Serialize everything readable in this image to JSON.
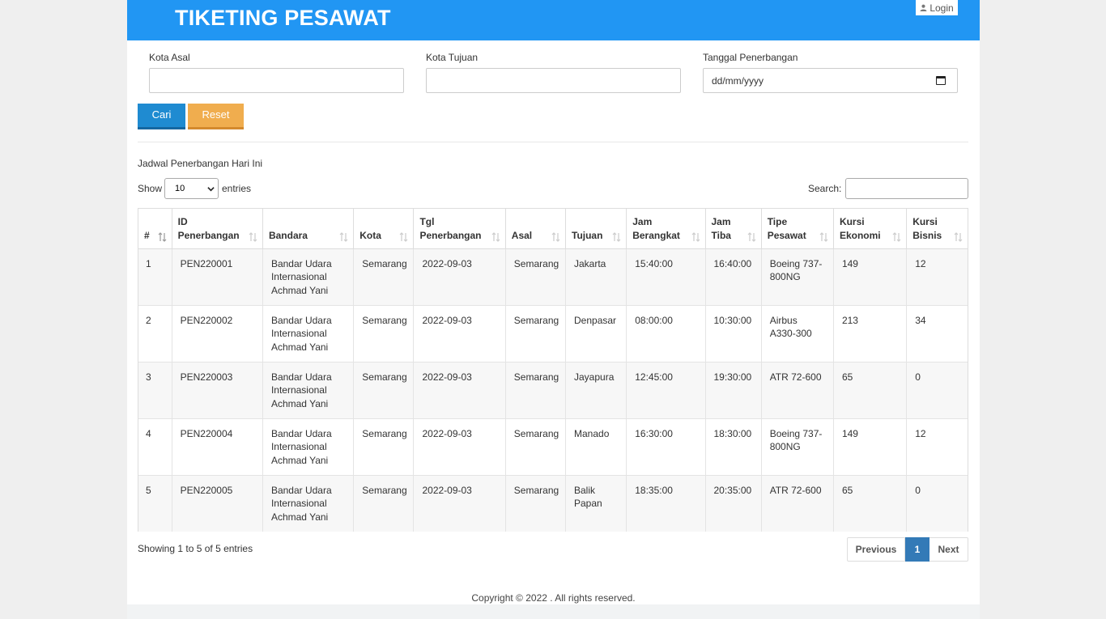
{
  "header": {
    "brand": "TIKETING PESAWAT",
    "login_label": "Login",
    "color": "#2196f3"
  },
  "form": {
    "kota_asal_label": "Kota Asal",
    "kota_asal_value": "",
    "kota_tujuan_label": "Kota Tujuan",
    "kota_tujuan_value": "",
    "tanggal_label": "Tanggal Penerbangan",
    "tanggal_placeholder": "dd/mm/yyyy",
    "cari_label": "Cari",
    "reset_label": "Reset"
  },
  "section": {
    "title": "Jadwal Penerbangan Hari Ini"
  },
  "table_controls": {
    "show_label": "Show",
    "entries_value": "10",
    "entries_label": "entries",
    "search_label": "Search:",
    "search_value": ""
  },
  "table": {
    "headers": [
      [
        "#"
      ],
      [
        "ID",
        "Penerbangan"
      ],
      [
        "Bandara"
      ],
      [
        "Kota"
      ],
      [
        "Tgl",
        "Penerbangan"
      ],
      [
        "Asal"
      ],
      [
        "Tujuan"
      ],
      [
        "Jam",
        "Berangkat"
      ],
      [
        "Jam",
        "Tiba"
      ],
      [
        "Tipe",
        "Pesawat"
      ],
      [
        "Kursi",
        "Ekonomi"
      ],
      [
        "Kursi",
        "Bisnis"
      ]
    ],
    "rows": [
      [
        "1",
        "PEN220001",
        "Bandar Udara Internasional Achmad Yani",
        "Semarang",
        "2022-09-03",
        "Semarang",
        "Jakarta",
        "15:40:00",
        "16:40:00",
        "Boeing 737-800NG",
        "149",
        "12"
      ],
      [
        "2",
        "PEN220002",
        "Bandar Udara Internasional Achmad Yani",
        "Semarang",
        "2022-09-03",
        "Semarang",
        "Denpasar",
        "08:00:00",
        "10:30:00",
        "Airbus A330-300",
        "213",
        "34"
      ],
      [
        "3",
        "PEN220003",
        "Bandar Udara Internasional Achmad Yani",
        "Semarang",
        "2022-09-03",
        "Semarang",
        "Jayapura",
        "12:45:00",
        "19:30:00",
        "ATR 72-600",
        "65",
        "0"
      ],
      [
        "4",
        "PEN220004",
        "Bandar Udara Internasional Achmad Yani",
        "Semarang",
        "2022-09-03",
        "Semarang",
        "Manado",
        "16:30:00",
        "18:30:00",
        "Boeing 737-800NG",
        "149",
        "12"
      ],
      [
        "5",
        "PEN220005",
        "Bandar Udara Internasional Achmad Yani",
        "Semarang",
        "2022-09-03",
        "Semarang",
        "Balik Papan",
        "18:35:00",
        "20:35:00",
        "ATR 72-600",
        "65",
        "0"
      ]
    ]
  },
  "pagination": {
    "info": "Showing 1 to 5 of 5 entries",
    "previous": "Previous",
    "current": "1",
    "next": "Next"
  },
  "footer": {
    "copyright": "Copyright © 2022 . All rights reserved."
  }
}
